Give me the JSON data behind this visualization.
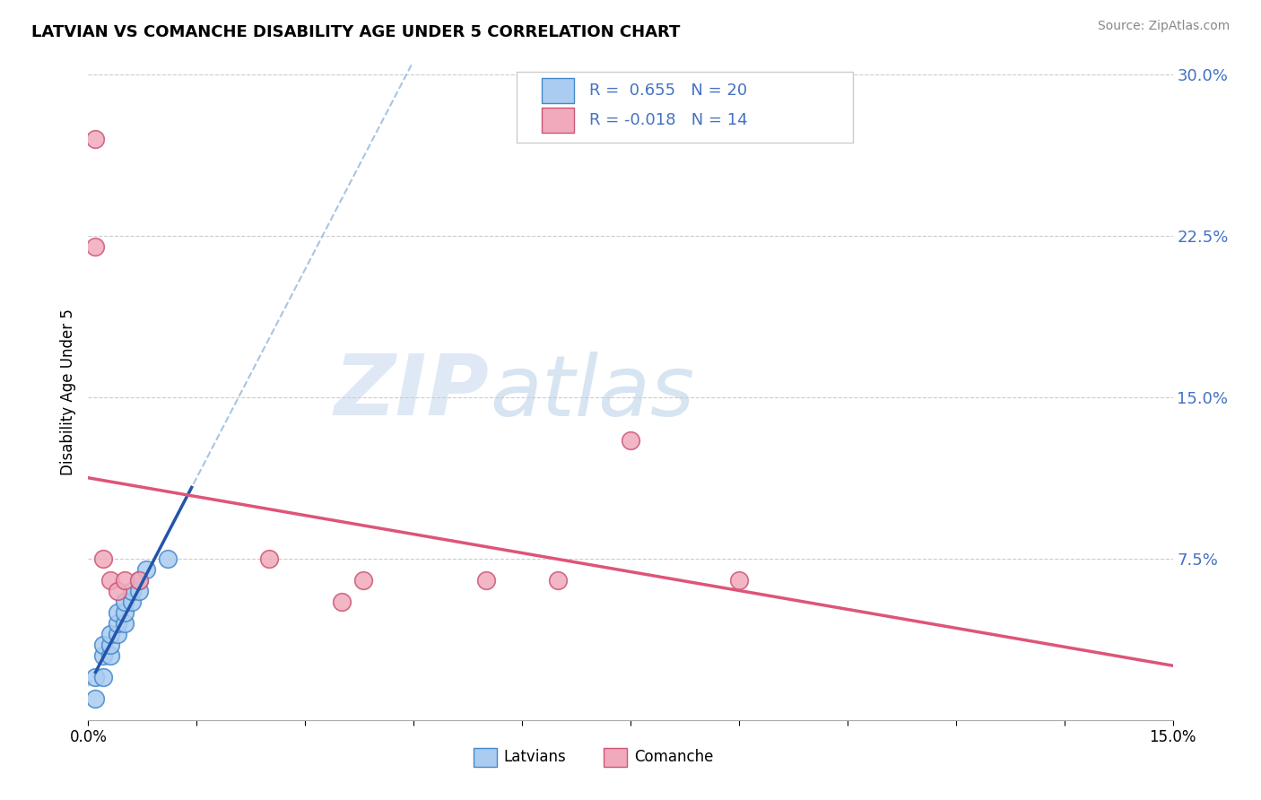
{
  "title": "LATVIAN VS COMANCHE DISABILITY AGE UNDER 5 CORRELATION CHART",
  "source": "Source: ZipAtlas.com",
  "ylabel": "Disability Age Under 5",
  "R_latvian": 0.655,
  "N_latvian": 20,
  "R_comanche": -0.018,
  "N_comanche": 14,
  "latvian_color": "#aaccf0",
  "latvian_edge_color": "#4488cc",
  "comanche_color": "#f0aabb",
  "comanche_edge_color": "#cc5577",
  "latvian_line_color": "#2255aa",
  "comanche_line_color": "#dd5577",
  "dash_color": "#99bbdd",
  "latvian_x": [
    0.001,
    0.001,
    0.002,
    0.002,
    0.002,
    0.003,
    0.003,
    0.003,
    0.004,
    0.004,
    0.004,
    0.005,
    0.005,
    0.005,
    0.006,
    0.006,
    0.007,
    0.007,
    0.008,
    0.011
  ],
  "latvian_y": [
    0.01,
    0.02,
    0.02,
    0.03,
    0.035,
    0.03,
    0.035,
    0.04,
    0.04,
    0.045,
    0.05,
    0.045,
    0.05,
    0.055,
    0.055,
    0.06,
    0.06,
    0.065,
    0.07,
    0.075
  ],
  "comanche_x": [
    0.001,
    0.001,
    0.002,
    0.003,
    0.004,
    0.005,
    0.007,
    0.025,
    0.035,
    0.038,
    0.055,
    0.065,
    0.075,
    0.09
  ],
  "comanche_y": [
    0.27,
    0.22,
    0.075,
    0.065,
    0.06,
    0.065,
    0.065,
    0.075,
    0.055,
    0.065,
    0.065,
    0.065,
    0.13,
    0.065
  ],
  "xmin": 0.0,
  "xmax": 0.15,
  "ymin": 0.0,
  "ymax": 0.305,
  "yticks": [
    0.075,
    0.15,
    0.225,
    0.3
  ],
  "ytick_labels": [
    "7.5%",
    "15.0%",
    "22.5%",
    "30.0%"
  ],
  "xticks": [
    0.0,
    0.015,
    0.03,
    0.045,
    0.06,
    0.075,
    0.09,
    0.105,
    0.12,
    0.135,
    0.15
  ],
  "xtick_labels": [
    "0.0%",
    "",
    "",
    "",
    "",
    "",
    "",
    "",
    "",
    "",
    "15.0%"
  ],
  "watermark_zip": "ZIP",
  "watermark_atlas": "atlas",
  "background_color": "#ffffff",
  "grid_color": "#cccccc",
  "tick_color": "#4472c4"
}
